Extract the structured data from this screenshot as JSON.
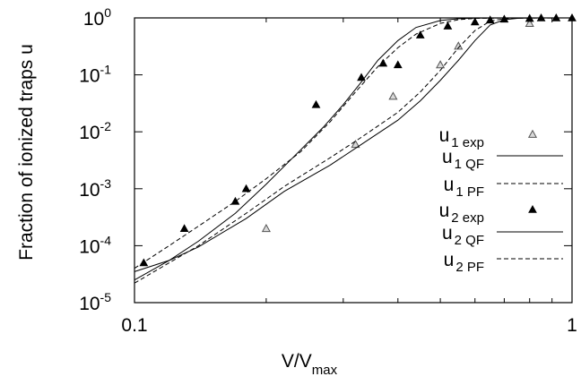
{
  "chart_data": {
    "type": "line",
    "xscale": "log",
    "yscale": "log",
    "xlim": [
      0.1,
      1
    ],
    "ylim": [
      1e-05,
      1
    ],
    "grid": false,
    "legend_position": "right",
    "xlabel": "V/V",
    "xlabel_sub": "max",
    "ylabel": "Fraction of ionized traps u",
    "xticks": [
      {
        "value": 0.1,
        "label": "0.1"
      },
      {
        "value": 1,
        "label": "1"
      }
    ],
    "yticks": [
      {
        "value": 1e-05,
        "base": "10",
        "exp": "-5"
      },
      {
        "value": 0.0001,
        "base": "10",
        "exp": "-4"
      },
      {
        "value": 0.001,
        "base": "10",
        "exp": "-3"
      },
      {
        "value": 0.01,
        "base": "10",
        "exp": "-2"
      },
      {
        "value": 0.1,
        "base": "10",
        "exp": "-1"
      },
      {
        "value": 1,
        "base": "10",
        "exp": "0"
      }
    ],
    "series": [
      {
        "key": "u1_exp",
        "label_main": "u",
        "label_sub": "1 exp",
        "style": "marker",
        "marker": "triangle-open",
        "color": "#808080",
        "points": [
          [
            0.2,
            0.0002
          ],
          [
            0.32,
            0.006
          ],
          [
            0.39,
            0.042
          ],
          [
            0.5,
            0.15
          ],
          [
            0.55,
            0.32
          ],
          [
            0.8,
            0.8
          ]
        ]
      },
      {
        "key": "u1_qf",
        "label_main": "u",
        "label_sub": "1 QF",
        "style": "solid",
        "color": "#000000",
        "points": [
          [
            0.1,
            3.5e-05
          ],
          [
            0.12,
            5.5e-05
          ],
          [
            0.14,
            9.5e-05
          ],
          [
            0.18,
            0.0003
          ],
          [
            0.22,
            0.0009
          ],
          [
            0.28,
            0.0026
          ],
          [
            0.33,
            0.006
          ],
          [
            0.4,
            0.016
          ],
          [
            0.45,
            0.035
          ],
          [
            0.5,
            0.08
          ],
          [
            0.55,
            0.18
          ],
          [
            0.6,
            0.4
          ],
          [
            0.65,
            0.75
          ],
          [
            0.7,
            0.93
          ],
          [
            0.75,
            0.98
          ],
          [
            0.8,
            1.0
          ],
          [
            1.0,
            1.0
          ]
        ]
      },
      {
        "key": "u1_pf",
        "label_main": "u",
        "label_sub": "1 PF",
        "style": "dashed",
        "color": "#000000",
        "points": [
          [
            0.1,
            2.2e-05
          ],
          [
            0.12,
            5e-05
          ],
          [
            0.14,
            0.0001
          ],
          [
            0.18,
            0.00037
          ],
          [
            0.22,
            0.0011
          ],
          [
            0.28,
            0.0035
          ],
          [
            0.33,
            0.008
          ],
          [
            0.4,
            0.022
          ],
          [
            0.45,
            0.05
          ],
          [
            0.5,
            0.12
          ],
          [
            0.55,
            0.3
          ],
          [
            0.6,
            0.6
          ],
          [
            0.65,
            0.88
          ],
          [
            0.7,
            0.97
          ],
          [
            0.75,
            0.99
          ],
          [
            1.0,
            1.0
          ]
        ]
      },
      {
        "key": "u2_exp",
        "label_main": "u",
        "label_sub": "2 exp",
        "style": "marker",
        "marker": "triangle-filled",
        "color": "#000000",
        "points": [
          [
            0.105,
            5e-05
          ],
          [
            0.13,
            0.0002
          ],
          [
            0.17,
            0.0006
          ],
          [
            0.18,
            0.001
          ],
          [
            0.26,
            0.03
          ],
          [
            0.33,
            0.09
          ],
          [
            0.37,
            0.16
          ],
          [
            0.4,
            0.15
          ],
          [
            0.45,
            0.5
          ],
          [
            0.52,
            0.72
          ],
          [
            0.6,
            0.85
          ],
          [
            0.65,
            0.92
          ],
          [
            0.7,
            0.95
          ],
          [
            0.8,
            0.98
          ],
          [
            0.85,
            1.0
          ],
          [
            0.92,
            1.0
          ],
          [
            1.0,
            1.0
          ]
        ]
      },
      {
        "key": "u2_qf",
        "label_main": "u",
        "label_sub": "2 QF",
        "style": "solid",
        "color": "#000000",
        "points": [
          [
            0.1,
            2.5e-05
          ],
          [
            0.12,
            5.5e-05
          ],
          [
            0.14,
            0.00012
          ],
          [
            0.17,
            0.00037
          ],
          [
            0.2,
            0.0012
          ],
          [
            0.23,
            0.0035
          ],
          [
            0.27,
            0.012
          ],
          [
            0.3,
            0.03
          ],
          [
            0.33,
            0.075
          ],
          [
            0.36,
            0.18
          ],
          [
            0.4,
            0.4
          ],
          [
            0.44,
            0.68
          ],
          [
            0.5,
            0.9
          ],
          [
            0.55,
            0.97
          ],
          [
            0.6,
            0.99
          ],
          [
            0.7,
            1.0
          ],
          [
            1.0,
            1.0
          ]
        ]
      },
      {
        "key": "u2_pf",
        "label_main": "u",
        "label_sub": "2 PF",
        "style": "dashed",
        "color": "#000000",
        "points": [
          [
            0.1,
            4e-05
          ],
          [
            0.12,
            0.0001
          ],
          [
            0.14,
            0.00022
          ],
          [
            0.17,
            0.0006
          ],
          [
            0.2,
            0.0015
          ],
          [
            0.24,
            0.0045
          ],
          [
            0.28,
            0.015
          ],
          [
            0.32,
            0.05
          ],
          [
            0.36,
            0.14
          ],
          [
            0.4,
            0.3
          ],
          [
            0.44,
            0.52
          ],
          [
            0.5,
            0.8
          ],
          [
            0.55,
            0.93
          ],
          [
            0.6,
            0.98
          ],
          [
            0.7,
            1.0
          ],
          [
            1.0,
            1.0
          ]
        ]
      }
    ]
  }
}
